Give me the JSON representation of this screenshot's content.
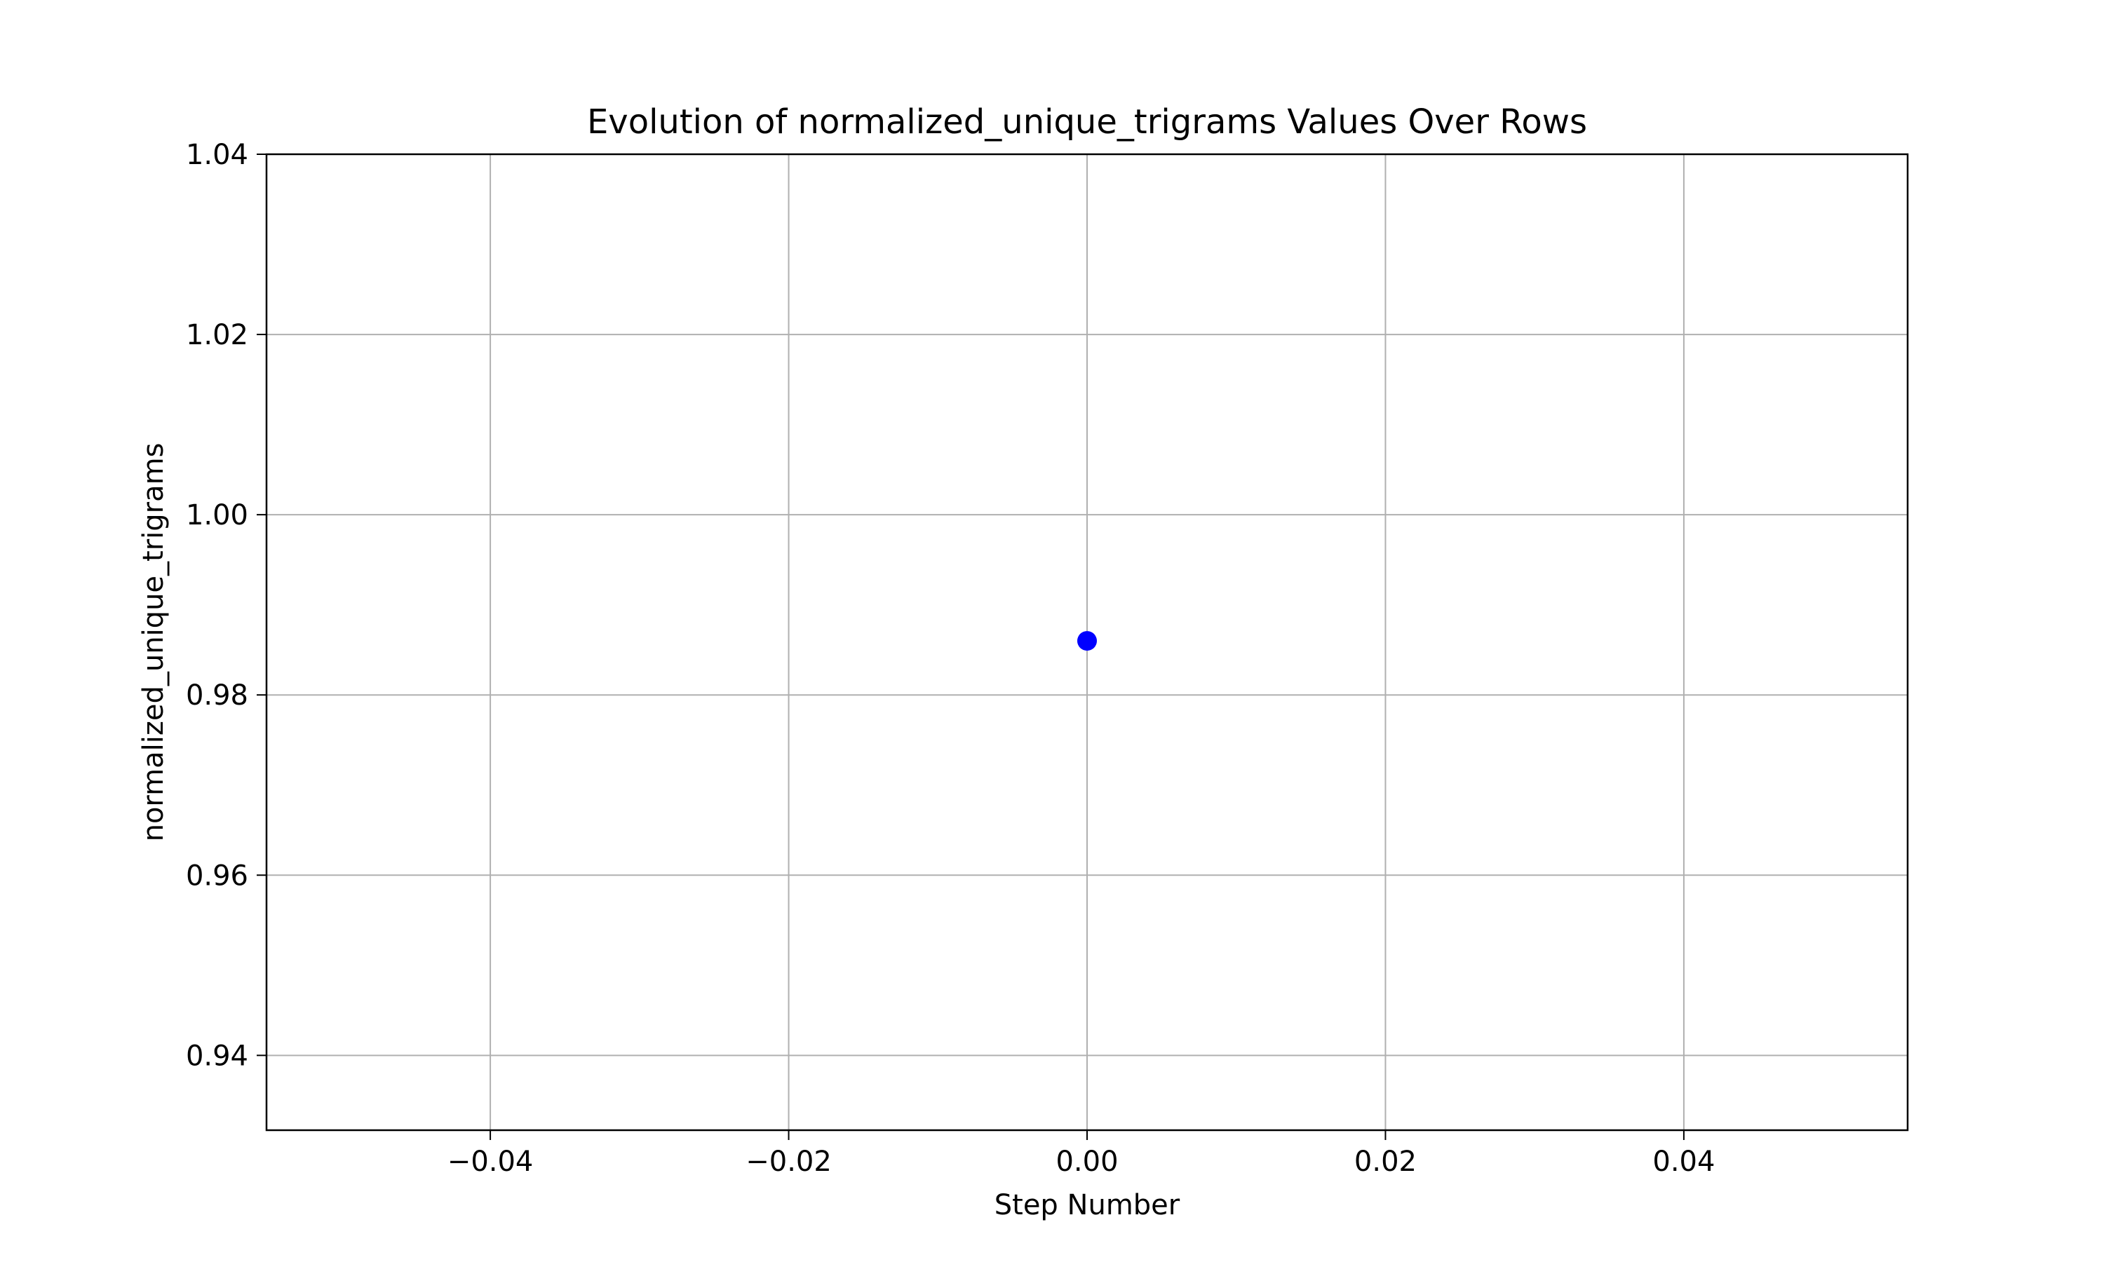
{
  "chart_data": {
    "type": "scatter",
    "title": "Evolution of normalized_unique_trigrams Values Over Rows",
    "xlabel": "Step Number",
    "ylabel": "normalized_unique_trigrams",
    "xlim": [
      -0.055,
      0.055
    ],
    "ylim": [
      0.9317,
      1.04
    ],
    "xticks": [
      -0.04,
      -0.02,
      0.0,
      0.02,
      0.04
    ],
    "xtick_labels": [
      "−0.04",
      "−0.02",
      "0.00",
      "0.02",
      "0.04"
    ],
    "yticks": [
      0.94,
      0.96,
      0.98,
      1.0,
      1.02,
      1.04
    ],
    "ytick_labels": [
      "0.94",
      "0.96",
      "0.98",
      "1.00",
      "1.02",
      "1.04"
    ],
    "grid": true,
    "series": [
      {
        "color": "#0000ff",
        "points": [
          {
            "x": 0.0,
            "y": 0.986
          }
        ]
      }
    ]
  }
}
